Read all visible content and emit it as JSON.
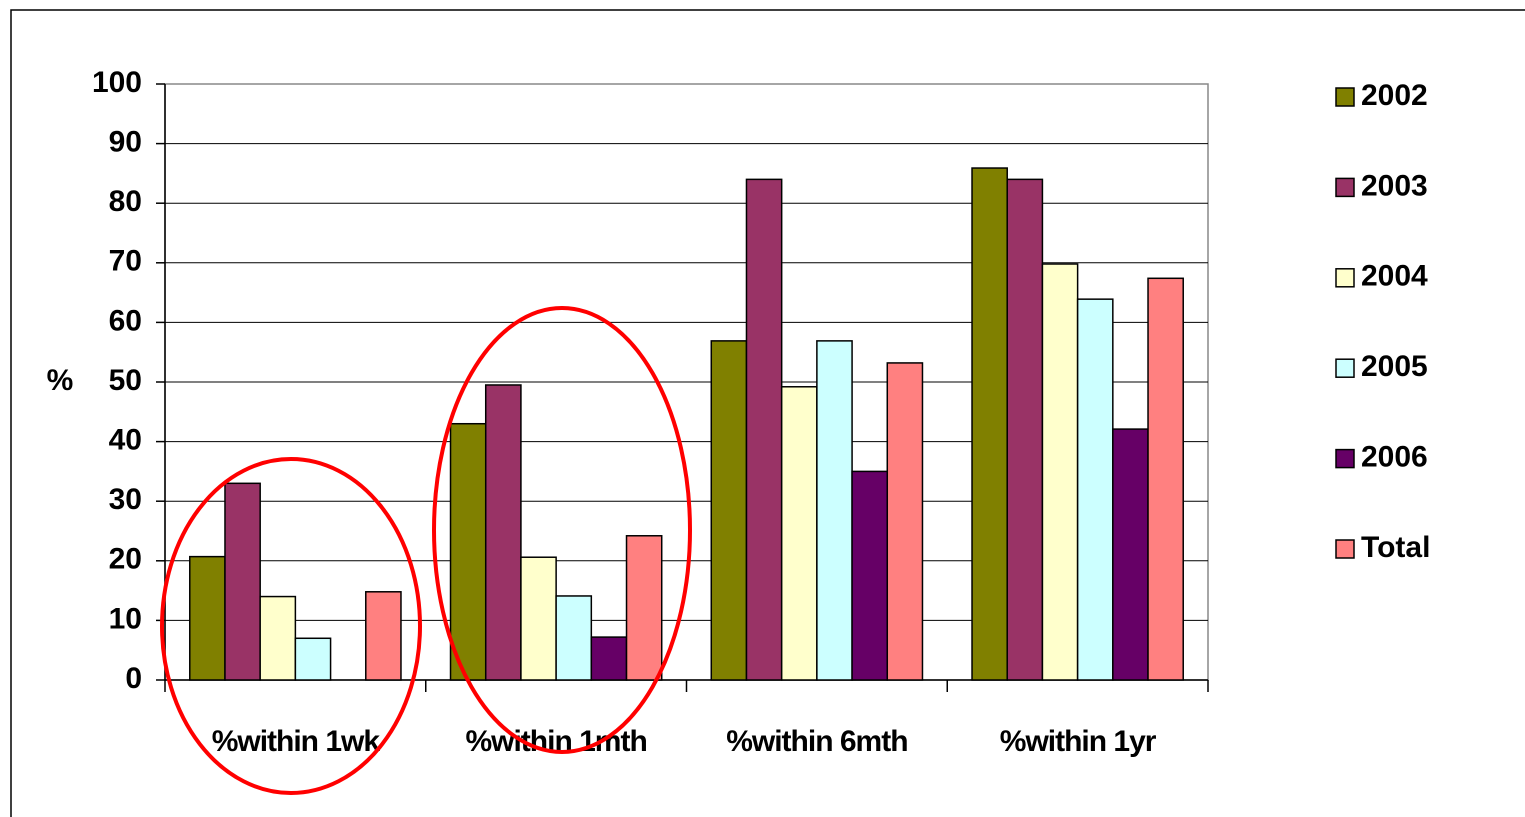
{
  "chart_data": {
    "type": "bar",
    "y_label": "%",
    "categories": [
      "%within 1wk",
      "%within 1mth",
      "%within 6mth",
      "%within 1yr"
    ],
    "series": [
      {
        "name": "2002",
        "color": "#808000",
        "values": [
          20.7,
          43,
          56.9,
          85.9
        ]
      },
      {
        "name": "2003",
        "color": "#993366",
        "values": [
          33,
          49.5,
          84,
          84
        ]
      },
      {
        "name": "2004",
        "color": "#ffffcc",
        "values": [
          14,
          20.6,
          49.2,
          69.8
        ]
      },
      {
        "name": "2005",
        "color": "#ccffff",
        "values": [
          7,
          14.1,
          56.9,
          63.9
        ]
      },
      {
        "name": "2006",
        "color": "#660066",
        "values": [
          0,
          7.2,
          35,
          42.1
        ]
      },
      {
        "name": "Total",
        "color": "#ff8080",
        "values": [
          14.8,
          24.2,
          53.2,
          67.4
        ]
      }
    ],
    "ylim": [
      0,
      100
    ],
    "yticks": [
      0,
      10,
      20,
      30,
      40,
      50,
      60,
      70,
      80,
      90,
      100
    ],
    "grid": true,
    "legend": "right"
  }
}
